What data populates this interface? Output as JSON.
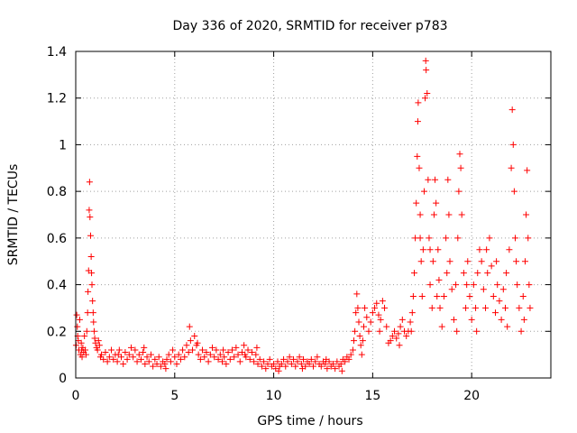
{
  "chart_data": {
    "type": "scatter",
    "title": "Day 336 of 2020, SRMTID for receiver p783",
    "xlabel": "GPS time / hours",
    "ylabel": "SRMTID / TECUs",
    "xlim": [
      0,
      24
    ],
    "ylim": [
      0,
      1.4
    ],
    "xticks": [
      0,
      5,
      10,
      15,
      20
    ],
    "yticks": [
      0,
      0.2,
      0.4,
      0.6,
      0.8,
      1,
      1.2,
      1.4
    ],
    "xtick_labels": [
      "0",
      "5",
      "10",
      "15",
      "20"
    ],
    "ytick_labels": [
      "0",
      "0.2",
      "0.4",
      "0.6",
      "0.8",
      "1",
      "1.2",
      "1.4"
    ],
    "grid": true,
    "marker": "+",
    "color": "#ff0000",
    "series": [
      {
        "name": "SRMTID",
        "points": [
          [
            0.02,
            0.14
          ],
          [
            0.05,
            0.27
          ],
          [
            0.08,
            0.22
          ],
          [
            0.1,
            0.18
          ],
          [
            0.13,
            0.16
          ],
          [
            0.16,
            0.12
          ],
          [
            0.2,
            0.25
          ],
          [
            0.24,
            0.1
          ],
          [
            0.28,
            0.15
          ],
          [
            0.32,
            0.09
          ],
          [
            0.36,
            0.13
          ],
          [
            0.4,
            0.11
          ],
          [
            0.44,
            0.18
          ],
          [
            0.48,
            0.12
          ],
          [
            0.52,
            0.1
          ],
          [
            0.56,
            0.2
          ],
          [
            0.6,
            0.28
          ],
          [
            0.62,
            0.37
          ],
          [
            0.65,
            0.46
          ],
          [
            0.68,
            0.72
          ],
          [
            0.7,
            0.84
          ],
          [
            0.72,
            0.69
          ],
          [
            0.75,
            0.61
          ],
          [
            0.78,
            0.52
          ],
          [
            0.8,
            0.45
          ],
          [
            0.82,
            0.4
          ],
          [
            0.85,
            0.33
          ],
          [
            0.88,
            0.28
          ],
          [
            0.9,
            0.24
          ],
          [
            0.93,
            0.2
          ],
          [
            0.96,
            0.17
          ],
          [
            1.0,
            0.15
          ],
          [
            1.05,
            0.13
          ],
          [
            1.1,
            0.12
          ],
          [
            1.15,
            0.16
          ],
          [
            1.2,
            0.14
          ],
          [
            1.3,
            0.1
          ],
          [
            1.4,
            0.08
          ],
          [
            1.5,
            0.11
          ],
          [
            1.6,
            0.07
          ],
          [
            1.7,
            0.09
          ],
          [
            1.8,
            0.12
          ],
          [
            1.9,
            0.08
          ],
          [
            2.0,
            0.1
          ],
          [
            2.1,
            0.07
          ],
          [
            2.2,
            0.12
          ],
          [
            2.3,
            0.09
          ],
          [
            2.4,
            0.06
          ],
          [
            2.5,
            0.11
          ],
          [
            2.6,
            0.08
          ],
          [
            2.7,
            0.1
          ],
          [
            2.8,
            0.13
          ],
          [
            2.9,
            0.09
          ],
          [
            3.0,
            0.12
          ],
          [
            3.1,
            0.07
          ],
          [
            3.2,
            0.1
          ],
          [
            3.3,
            0.08
          ],
          [
            3.4,
            0.11
          ],
          [
            3.5,
            0.06
          ],
          [
            3.6,
            0.09
          ],
          [
            3.7,
            0.07
          ],
          [
            3.8,
            0.1
          ],
          [
            3.9,
            0.05
          ],
          [
            4.0,
            0.08
          ],
          [
            4.1,
            0.06
          ],
          [
            4.2,
            0.09
          ],
          [
            4.3,
            0.05
          ],
          [
            4.4,
            0.07
          ],
          [
            4.5,
            0.06
          ],
          [
            4.6,
            0.08
          ],
          [
            4.7,
            0.1
          ],
          [
            4.8,
            0.07
          ],
          [
            4.9,
            0.12
          ],
          [
            5.0,
            0.09
          ],
          [
            5.1,
            0.06
          ],
          [
            5.2,
            0.1
          ],
          [
            5.3,
            0.08
          ],
          [
            5.4,
            0.12
          ],
          [
            5.5,
            0.09
          ],
          [
            5.6,
            0.14
          ],
          [
            5.7,
            0.11
          ],
          [
            5.75,
            0.22
          ],
          [
            5.8,
            0.16
          ],
          [
            5.9,
            0.12
          ],
          [
            6.0,
            0.18
          ],
          [
            6.1,
            0.14
          ],
          [
            6.2,
            0.1
          ],
          [
            6.3,
            0.08
          ],
          [
            6.4,
            0.12
          ],
          [
            6.5,
            0.09
          ],
          [
            6.6,
            0.11
          ],
          [
            6.7,
            0.07
          ],
          [
            6.8,
            0.1
          ],
          [
            6.9,
            0.13
          ],
          [
            7.0,
            0.09
          ],
          [
            7.1,
            0.12
          ],
          [
            7.2,
            0.08
          ],
          [
            7.3,
            0.1
          ],
          [
            7.4,
            0.07
          ],
          [
            7.5,
            0.09
          ],
          [
            7.6,
            0.06
          ],
          [
            7.7,
            0.11
          ],
          [
            7.8,
            0.08
          ],
          [
            7.9,
            0.12
          ],
          [
            8.0,
            0.09
          ],
          [
            8.1,
            0.13
          ],
          [
            8.2,
            0.1
          ],
          [
            8.3,
            0.07
          ],
          [
            8.4,
            0.11
          ],
          [
            8.5,
            0.14
          ],
          [
            8.6,
            0.09
          ],
          [
            8.7,
            0.12
          ],
          [
            8.8,
            0.08
          ],
          [
            8.9,
            0.11
          ],
          [
            9.0,
            0.07
          ],
          [
            9.1,
            0.1
          ],
          [
            9.2,
            0.06
          ],
          [
            9.3,
            0.08
          ],
          [
            9.4,
            0.05
          ],
          [
            9.5,
            0.07
          ],
          [
            9.6,
            0.04
          ],
          [
            9.7,
            0.06
          ],
          [
            9.8,
            0.08
          ],
          [
            9.9,
            0.05
          ],
          [
            10.0,
            0.06
          ],
          [
            10.1,
            0.04
          ],
          [
            10.2,
            0.07
          ],
          [
            10.3,
            0.05
          ],
          [
            10.4,
            0.06
          ],
          [
            10.5,
            0.08
          ],
          [
            10.6,
            0.05
          ],
          [
            10.7,
            0.07
          ],
          [
            10.8,
            0.09
          ],
          [
            10.9,
            0.06
          ],
          [
            11.0,
            0.08
          ],
          [
            11.1,
            0.05
          ],
          [
            11.2,
            0.07
          ],
          [
            11.3,
            0.09
          ],
          [
            11.4,
            0.06
          ],
          [
            11.5,
            0.08
          ],
          [
            11.6,
            0.05
          ],
          [
            11.7,
            0.07
          ],
          [
            11.8,
            0.06
          ],
          [
            11.9,
            0.08
          ],
          [
            12.0,
            0.05
          ],
          [
            12.1,
            0.07
          ],
          [
            12.2,
            0.09
          ],
          [
            12.3,
            0.06
          ],
          [
            12.4,
            0.05
          ],
          [
            12.5,
            0.07
          ],
          [
            12.6,
            0.06
          ],
          [
            12.7,
            0.04
          ],
          [
            12.8,
            0.07
          ],
          [
            12.9,
            0.05
          ],
          [
            13.0,
            0.06
          ],
          [
            13.1,
            0.04
          ],
          [
            13.2,
            0.07
          ],
          [
            13.3,
            0.05
          ],
          [
            13.4,
            0.06
          ],
          [
            13.5,
            0.08
          ],
          [
            13.6,
            0.07
          ],
          [
            13.7,
            0.09
          ],
          [
            13.8,
            0.08
          ],
          [
            13.9,
            0.1
          ],
          [
            14.0,
            0.12
          ],
          [
            14.05,
            0.16
          ],
          [
            14.1,
            0.2
          ],
          [
            14.15,
            0.28
          ],
          [
            14.2,
            0.36
          ],
          [
            14.25,
            0.3
          ],
          [
            14.3,
            0.24
          ],
          [
            14.35,
            0.18
          ],
          [
            14.4,
            0.14
          ],
          [
            14.5,
            0.16
          ],
          [
            14.55,
            0.22
          ],
          [
            14.6,
            0.3
          ],
          [
            14.7,
            0.26
          ],
          [
            14.8,
            0.2
          ],
          [
            14.9,
            0.24
          ],
          [
            15.0,
            0.28
          ],
          [
            15.1,
            0.3
          ],
          [
            15.2,
            0.32
          ],
          [
            15.3,
            0.27
          ],
          [
            15.4,
            0.25
          ],
          [
            15.5,
            0.33
          ],
          [
            15.6,
            0.3
          ],
          [
            15.7,
            0.22
          ],
          [
            15.8,
            0.15
          ],
          [
            15.9,
            0.16
          ],
          [
            16.0,
            0.18
          ],
          [
            16.1,
            0.2
          ],
          [
            16.2,
            0.17
          ],
          [
            16.3,
            0.19
          ],
          [
            16.4,
            0.22
          ],
          [
            16.5,
            0.25
          ],
          [
            16.6,
            0.2
          ],
          [
            16.7,
            0.18
          ],
          [
            16.8,
            0.2
          ],
          [
            16.9,
            0.24
          ],
          [
            17.0,
            0.28
          ],
          [
            17.05,
            0.35
          ],
          [
            17.1,
            0.45
          ],
          [
            17.15,
            0.6
          ],
          [
            17.2,
            0.75
          ],
          [
            17.25,
            0.95
          ],
          [
            17.28,
            1.1
          ],
          [
            17.3,
            1.18
          ],
          [
            17.35,
            0.9
          ],
          [
            17.4,
            0.7
          ],
          [
            17.45,
            0.5
          ],
          [
            17.5,
            0.35
          ],
          [
            17.55,
            0.55
          ],
          [
            17.6,
            0.8
          ],
          [
            17.65,
            1.2
          ],
          [
            17.68,
            1.36
          ],
          [
            17.7,
            1.32
          ],
          [
            17.75,
            1.22
          ],
          [
            17.8,
            0.85
          ],
          [
            17.85,
            0.6
          ],
          [
            17.9,
            0.4
          ],
          [
            18.0,
            0.3
          ],
          [
            18.05,
            0.5
          ],
          [
            18.1,
            0.7
          ],
          [
            18.15,
            0.85
          ],
          [
            18.2,
            0.75
          ],
          [
            18.3,
            0.55
          ],
          [
            18.35,
            0.42
          ],
          [
            18.4,
            0.3
          ],
          [
            18.5,
            0.22
          ],
          [
            18.6,
            0.35
          ],
          [
            18.7,
            0.6
          ],
          [
            18.8,
            0.85
          ],
          [
            18.85,
            0.7
          ],
          [
            18.9,
            0.5
          ],
          [
            19.0,
            0.38
          ],
          [
            19.1,
            0.25
          ],
          [
            19.2,
            0.4
          ],
          [
            19.3,
            0.6
          ],
          [
            19.35,
            0.8
          ],
          [
            19.4,
            0.96
          ],
          [
            19.45,
            0.9
          ],
          [
            19.5,
            0.7
          ],
          [
            19.6,
            0.45
          ],
          [
            19.7,
            0.3
          ],
          [
            19.8,
            0.5
          ],
          [
            19.9,
            0.35
          ],
          [
            20.0,
            0.25
          ],
          [
            20.1,
            0.4
          ],
          [
            20.2,
            0.3
          ],
          [
            20.3,
            0.45
          ],
          [
            20.4,
            0.55
          ],
          [
            20.5,
            0.5
          ],
          [
            20.6,
            0.38
          ],
          [
            20.7,
            0.3
          ],
          [
            20.8,
            0.45
          ],
          [
            20.9,
            0.6
          ],
          [
            21.0,
            0.48
          ],
          [
            21.1,
            0.35
          ],
          [
            21.2,
            0.28
          ],
          [
            21.3,
            0.4
          ],
          [
            21.4,
            0.33
          ],
          [
            21.5,
            0.25
          ],
          [
            21.6,
            0.38
          ],
          [
            21.7,
            0.3
          ],
          [
            21.8,
            0.22
          ],
          [
            21.9,
            0.55
          ],
          [
            22.0,
            0.9
          ],
          [
            22.05,
            1.15
          ],
          [
            22.1,
            1.0
          ],
          [
            22.15,
            0.8
          ],
          [
            22.2,
            0.6
          ],
          [
            22.3,
            0.4
          ],
          [
            22.4,
            0.3
          ],
          [
            22.5,
            0.2
          ],
          [
            22.6,
            0.35
          ],
          [
            22.7,
            0.5
          ],
          [
            22.75,
            0.7
          ],
          [
            22.8,
            0.89
          ],
          [
            22.85,
            0.6
          ],
          [
            22.9,
            0.4
          ],
          [
            0.3,
            0.12
          ],
          [
            1.25,
            0.09
          ],
          [
            2.15,
            0.1
          ],
          [
            3.45,
            0.13
          ],
          [
            4.55,
            0.04
          ],
          [
            6.15,
            0.15
          ],
          [
            7.45,
            0.12
          ],
          [
            8.55,
            0.1
          ],
          [
            9.15,
            0.13
          ],
          [
            10.25,
            0.03
          ],
          [
            11.45,
            0.04
          ],
          [
            12.65,
            0.08
          ],
          [
            13.45,
            0.03
          ],
          [
            14.45,
            0.1
          ],
          [
            15.35,
            0.2
          ],
          [
            16.35,
            0.14
          ],
          [
            16.95,
            0.2
          ],
          [
            17.4,
            0.6
          ],
          [
            17.9,
            0.55
          ],
          [
            18.25,
            0.35
          ],
          [
            18.75,
            0.45
          ],
          [
            19.25,
            0.2
          ],
          [
            19.75,
            0.4
          ],
          [
            20.25,
            0.2
          ],
          [
            20.75,
            0.55
          ],
          [
            21.25,
            0.5
          ],
          [
            21.75,
            0.45
          ],
          [
            22.25,
            0.5
          ],
          [
            22.65,
            0.25
          ],
          [
            22.95,
            0.3
          ]
        ]
      }
    ]
  }
}
